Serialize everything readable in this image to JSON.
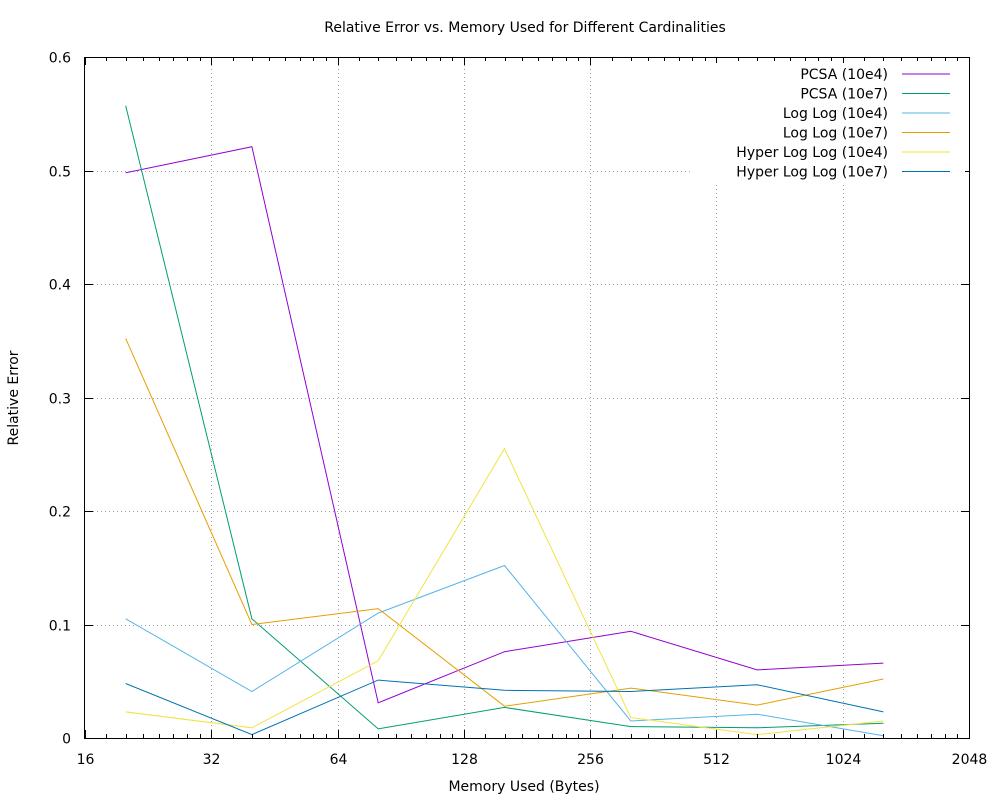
{
  "chart_data": {
    "type": "line",
    "title": "Relative Error vs. Memory Used for Different Cardinalities",
    "xlabel": "Memory Used (Bytes)",
    "ylabel": "Relative Error",
    "x_scale": "log2",
    "xlim": [
      16,
      2048
    ],
    "ylim": [
      0,
      0.6
    ],
    "x_ticks": [
      16,
      32,
      64,
      128,
      256,
      512,
      1024,
      2048
    ],
    "x_tick_labels": [
      "16",
      "32",
      "64",
      "128",
      "256",
      "512",
      "1024",
      "2048"
    ],
    "y_ticks": [
      0,
      0.1,
      0.2,
      0.3,
      0.4,
      0.5,
      0.6
    ],
    "y_tick_labels": [
      "0",
      "0.1",
      "0.2",
      "0.3",
      "0.4",
      "0.5",
      "0.6"
    ],
    "grid": true,
    "legend_position": "top-right",
    "x": [
      20,
      40,
      80,
      160,
      320,
      640,
      1280
    ],
    "series": [
      {
        "name": "PCSA (10e4)",
        "color": "#9400d3",
        "values": [
          0.498,
          0.521,
          0.031,
          0.076,
          0.094,
          0.06,
          0.066
        ]
      },
      {
        "name": "PCSA (10e7)",
        "color": "#009e73",
        "values": [
          0.557,
          0.105,
          0.008,
          0.027,
          0.01,
          0.009,
          0.013
        ]
      },
      {
        "name": "Log Log (10e4)",
        "color": "#56b4e9",
        "values": [
          0.105,
          0.041,
          0.11,
          0.152,
          0.015,
          0.021,
          0.002
        ]
      },
      {
        "name": "Log Log (10e7)",
        "color": "#e69f00",
        "values": [
          0.352,
          0.1,
          0.114,
          0.028,
          0.044,
          0.029,
          0.052
        ]
      },
      {
        "name": "Hyper Log Log (10e4)",
        "color": "#f0e442",
        "values": [
          0.023,
          0.009,
          0.068,
          0.255,
          0.018,
          0.003,
          0.015
        ]
      },
      {
        "name": "Hyper Log Log (10e7)",
        "color": "#0072b2",
        "values": [
          0.048,
          0.003,
          0.051,
          0.042,
          0.041,
          0.047,
          0.023
        ]
      }
    ]
  }
}
